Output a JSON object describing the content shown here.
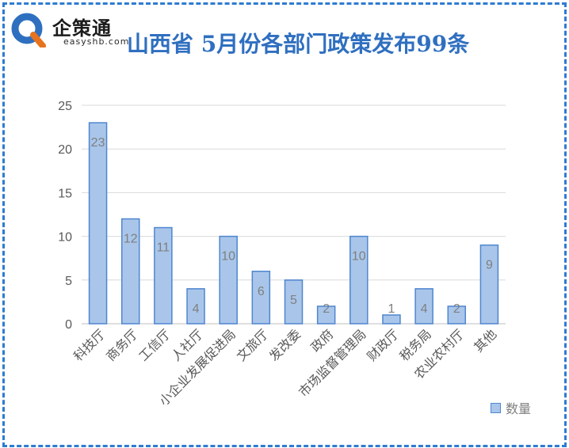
{
  "logo": {
    "name_cn": "企策通",
    "name_en": "easyshb.com"
  },
  "chart_data": {
    "type": "bar",
    "title": "山西省 5月份各部门政策发布99条",
    "categories": [
      "科技厅",
      "商务厅",
      "工信厅",
      "人社厅",
      "小企业发展促进局",
      "文旅厅",
      "发改委",
      "政府",
      "市场监督管理局",
      "财政厅",
      "税务局",
      "农业农村厅",
      "其他"
    ],
    "series": [
      {
        "name": "数量",
        "values": [
          23,
          12,
          11,
          4,
          10,
          6,
          5,
          2,
          10,
          1,
          4,
          2,
          9
        ]
      }
    ],
    "ylim": [
      0,
      25
    ],
    "yticks": [
      "0",
      "5",
      "10",
      "15",
      "20",
      "25"
    ],
    "grid": true,
    "legend_position": "bottom-right",
    "colors": {
      "bar_fill": "#a9c6ea",
      "bar_stroke": "#4f86cf",
      "grid": "#d9d9d9",
      "axis_text": "#595959",
      "label_text": "#7f7f7f",
      "title": "#2f6fc0",
      "border": "#2e7bd1"
    }
  }
}
